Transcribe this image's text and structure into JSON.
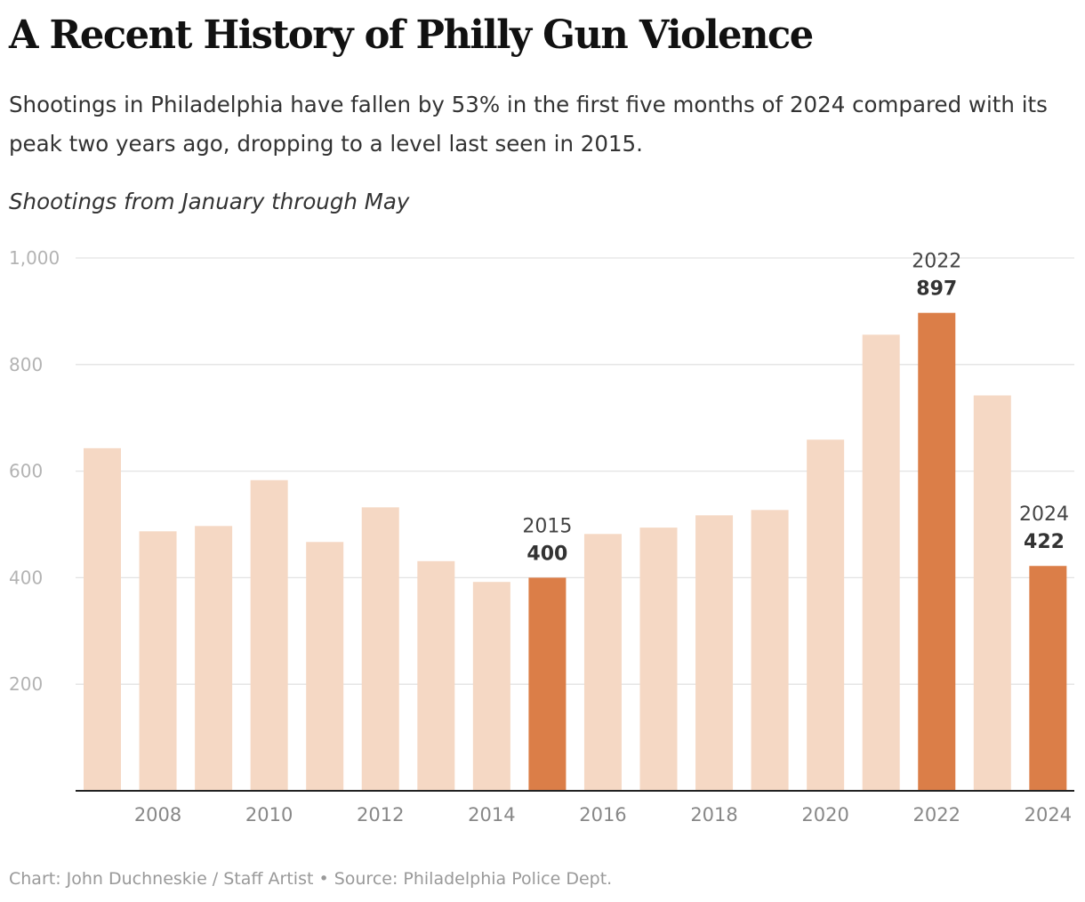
{
  "chart_data": {
    "type": "bar",
    "title": "A Recent History of Philly Gun Violence",
    "subtitle": "Shootings in Philadelphia have fallen by 53% in the first five months of 2024 compared with its peak two years ago, dropping to a level last seen in 2015.",
    "ylabel": "Shootings from January through May",
    "xlabel": "",
    "categories": [
      2007,
      2008,
      2009,
      2010,
      2011,
      2012,
      2013,
      2014,
      2015,
      2016,
      2017,
      2018,
      2019,
      2020,
      2021,
      2022,
      2023,
      2024
    ],
    "values": [
      643,
      487,
      497,
      583,
      467,
      532,
      431,
      392,
      400,
      482,
      494,
      517,
      527,
      659,
      856,
      897,
      742,
      422
    ],
    "highlighted": [
      2015,
      2022,
      2024
    ],
    "ylim": [
      0,
      1000
    ],
    "yticks": [
      200,
      400,
      600,
      800,
      1000
    ],
    "ytick_labels": [
      "200",
      "400",
      "600",
      "800",
      "1,000"
    ],
    "xticks": [
      "2008",
      "2010",
      "2012",
      "2014",
      "2016",
      "2018",
      "2020",
      "2022",
      "2024"
    ],
    "annotations": [
      {
        "year": "2015",
        "value": "400"
      },
      {
        "year": "2022",
        "value": "897"
      },
      {
        "year": "2024",
        "value": "422"
      }
    ],
    "grid": true,
    "colors": {
      "bar": "#f5d8c4",
      "highlight": "#db7e48",
      "grid": "#e3e3e3",
      "axis": "#222222"
    },
    "credit": "Chart: John Duchneskie / Staff Artist • Source: Philadelphia Police Dept."
  }
}
